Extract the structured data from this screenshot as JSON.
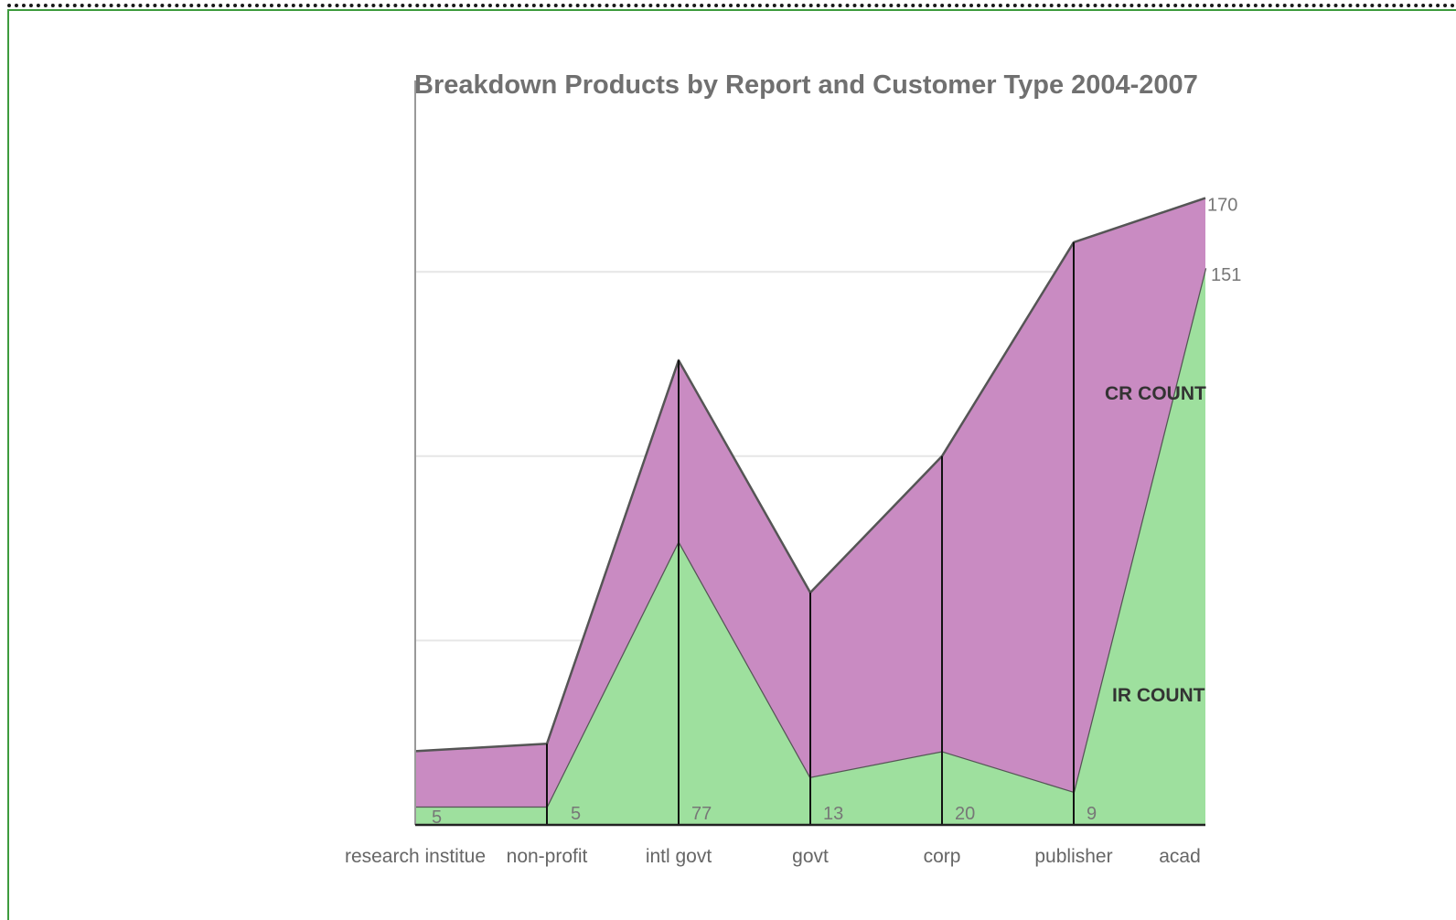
{
  "chart_data": {
    "type": "area",
    "stacked": true,
    "title": "Breakdown Products by Report and Customer Type 2004-2007",
    "xlabel": "",
    "ylabel": "",
    "categories": [
      "research institue",
      "non-profit",
      "intl govt",
      "govt",
      "corp",
      "publisher",
      "acad"
    ],
    "series": [
      {
        "name": "IR COUNT",
        "values": [
          5,
          5,
          77,
          13,
          20,
          9,
          151
        ],
        "color": "#9ee09e",
        "labels": [
          "5",
          "5",
          "77",
          "13",
          "20",
          "9",
          "151"
        ]
      },
      {
        "name": "CR COUNT",
        "values": [
          15,
          17,
          49,
          50,
          80,
          149,
          19
        ],
        "color": "#c98bc2",
        "labels": [
          "",
          "",
          "",
          "",
          "",
          "",
          ""
        ]
      }
    ],
    "total_labels": [
      "",
      "",
      "",
      "",
      "",
      "",
      "170"
    ],
    "ylim": [
      0,
      200
    ],
    "y_gridlines": [
      50,
      100,
      150
    ],
    "grid": true,
    "legend": "none",
    "colors": {
      "outline": "#555555",
      "category_divider": "#111111",
      "grid": "#e6e6e6",
      "axis": "#999999",
      "frame": "#3e9b3e"
    }
  }
}
